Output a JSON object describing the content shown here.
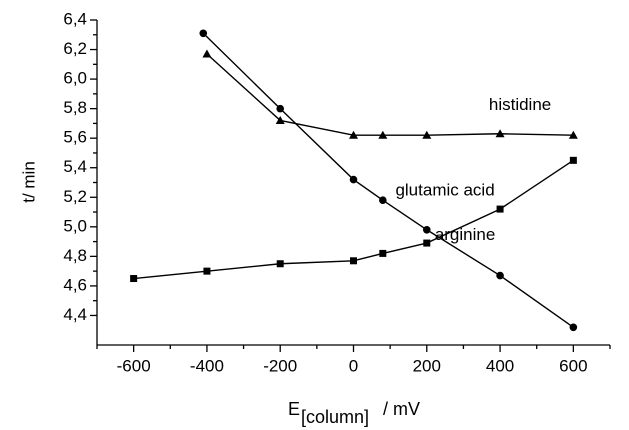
{
  "chart_data": {
    "type": "line",
    "y_label": "t/ min",
    "x_label": {
      "main": "E",
      "subscript": "[column]",
      "unit": "/ mV"
    },
    "xlim": [
      -700,
      700
    ],
    "xticks": [
      -600,
      -400,
      -200,
      0,
      200,
      400,
      600
    ],
    "ylim": [
      4.2,
      6.4
    ],
    "yticks": [
      {
        "value": 4.4,
        "label": "4,4"
      },
      {
        "value": 4.6,
        "label": "4,6"
      },
      {
        "value": 4.8,
        "label": "4,8"
      },
      {
        "value": 5.0,
        "label": "5,0"
      },
      {
        "value": 5.2,
        "label": "5,2"
      },
      {
        "value": 5.4,
        "label": "5,4"
      },
      {
        "value": 5.6,
        "label": "5,6"
      },
      {
        "value": 5.8,
        "label": "5,8"
      },
      {
        "value": 6.0,
        "label": "6,0"
      },
      {
        "value": 6.2,
        "label": "6,2"
      },
      {
        "value": 6.4,
        "label": "6,4"
      }
    ],
    "series": [
      {
        "name": "histidine",
        "color": "#000000",
        "marker": "triangle",
        "x": [
          -400,
          -200,
          0,
          80,
          200,
          400,
          600
        ],
        "values": [
          6.17,
          5.72,
          5.62,
          5.62,
          5.62,
          5.63,
          5.62
        ]
      },
      {
        "name": "glutamic acid",
        "color": "#000000",
        "marker": "square",
        "x": [
          -600,
          -400,
          -200,
          0,
          80,
          200,
          400,
          600
        ],
        "values": [
          4.65,
          4.7,
          4.75,
          4.77,
          4.82,
          4.89,
          5.12,
          5.45
        ]
      },
      {
        "name": "arginine",
        "color": "#000000",
        "marker": "circle",
        "x": [
          -410,
          -200,
          0,
          80,
          200,
          400,
          600
        ],
        "values": [
          6.31,
          5.8,
          5.32,
          5.18,
          4.98,
          4.67,
          4.32
        ]
      }
    ]
  }
}
